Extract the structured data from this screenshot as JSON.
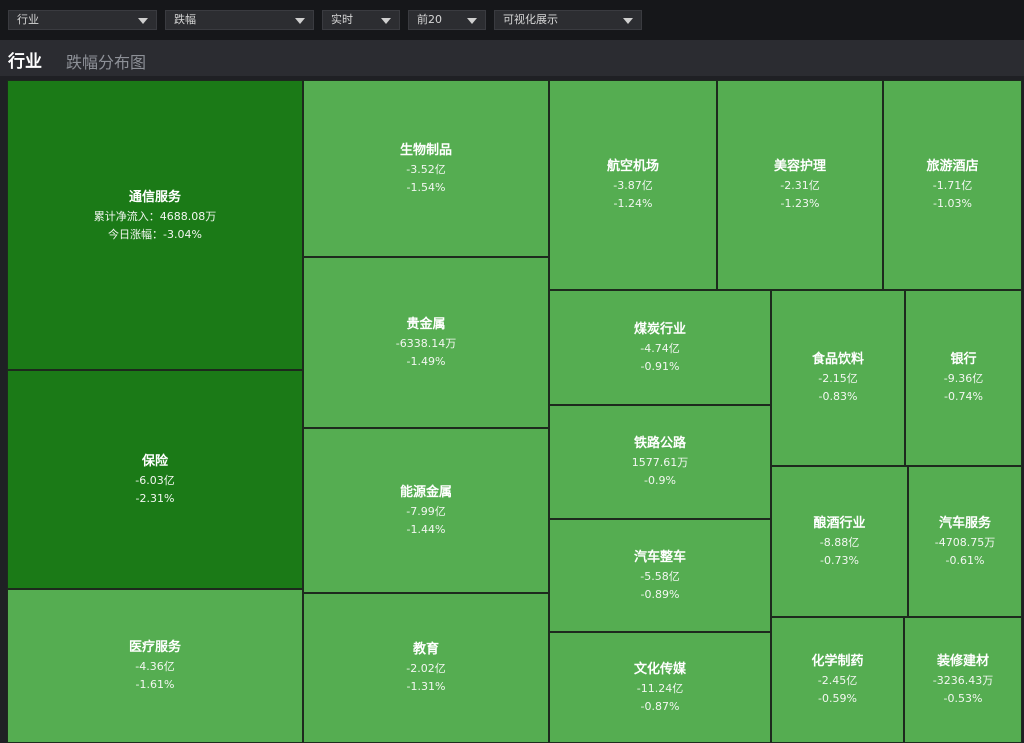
{
  "toolbar": {
    "selects": [
      {
        "name": "category-select",
        "value": "行业"
      },
      {
        "name": "metric-select",
        "value": "跌幅"
      },
      {
        "name": "period-select",
        "value": "实时"
      },
      {
        "name": "topn-select",
        "value": "前20"
      },
      {
        "name": "view-select",
        "value": "可视化展示"
      }
    ]
  },
  "header": {
    "tab_active": "行业",
    "tab_inactive": "跌幅分布图"
  },
  "colors": {
    "dark_green": "#1b7a17",
    "light_green": "#55ad51"
  },
  "chart_data": {
    "type": "treemap",
    "items": [
      {
        "name": "通信服务",
        "line1": "累计净流入：4688.08万",
        "line2": "今日涨幅：-3.04%",
        "net_flow": "4688.08万",
        "change_pct": -3.04
      },
      {
        "name": "保险",
        "line1": "-6.03亿",
        "line2": "-2.31%",
        "net_flow": "-6.03亿",
        "change_pct": -2.31
      },
      {
        "name": "医疗服务",
        "line1": "-4.36亿",
        "line2": "-1.61%",
        "net_flow": "-4.36亿",
        "change_pct": -1.61
      },
      {
        "name": "生物制品",
        "line1": "-3.52亿",
        "line2": "-1.54%",
        "net_flow": "-3.52亿",
        "change_pct": -1.54
      },
      {
        "name": "贵金属",
        "line1": "-6338.14万",
        "line2": "-1.49%",
        "net_flow": "-6338.14万",
        "change_pct": -1.49
      },
      {
        "name": "能源金属",
        "line1": "-7.99亿",
        "line2": "-1.44%",
        "net_flow": "-7.99亿",
        "change_pct": -1.44
      },
      {
        "name": "教育",
        "line1": "-2.02亿",
        "line2": "-1.31%",
        "net_flow": "-2.02亿",
        "change_pct": -1.31
      },
      {
        "name": "航空机场",
        "line1": "-3.87亿",
        "line2": "-1.24%",
        "net_flow": "-3.87亿",
        "change_pct": -1.24
      },
      {
        "name": "美容护理",
        "line1": "-2.31亿",
        "line2": "-1.23%",
        "net_flow": "-2.31亿",
        "change_pct": -1.23
      },
      {
        "name": "旅游酒店",
        "line1": "-1.71亿",
        "line2": "-1.03%",
        "net_flow": "-1.71亿",
        "change_pct": -1.03
      },
      {
        "name": "煤炭行业",
        "line1": "-4.74亿",
        "line2": "-0.91%",
        "net_flow": "-4.74亿",
        "change_pct": -0.91
      },
      {
        "name": "铁路公路",
        "line1": "1577.61万",
        "line2": "-0.9%",
        "net_flow": "1577.61万",
        "change_pct": -0.9
      },
      {
        "name": "汽车整车",
        "line1": "-5.58亿",
        "line2": "-0.89%",
        "net_flow": "-5.58亿",
        "change_pct": -0.89
      },
      {
        "name": "文化传媒",
        "line1": "-11.24亿",
        "line2": "-0.87%",
        "net_flow": "-11.24亿",
        "change_pct": -0.87
      },
      {
        "name": "食品饮料",
        "line1": "-2.15亿",
        "line2": "-0.83%",
        "net_flow": "-2.15亿",
        "change_pct": -0.83
      },
      {
        "name": "银行",
        "line1": "-9.36亿",
        "line2": "-0.74%",
        "net_flow": "-9.36亿",
        "change_pct": -0.74
      },
      {
        "name": "酿酒行业",
        "line1": "-8.88亿",
        "line2": "-0.73%",
        "net_flow": "-8.88亿",
        "change_pct": -0.73
      },
      {
        "name": "汽车服务",
        "line1": "-4708.75万",
        "line2": "-0.61%",
        "net_flow": "-4708.75万",
        "change_pct": -0.61
      },
      {
        "name": "化学制药",
        "line1": "-2.45亿",
        "line2": "-0.59%",
        "net_flow": "-2.45亿",
        "change_pct": -0.59
      },
      {
        "name": "装修建材",
        "line1": "-3236.43万",
        "line2": "-0.53%",
        "net_flow": "-3236.43万",
        "change_pct": -0.53
      }
    ]
  }
}
